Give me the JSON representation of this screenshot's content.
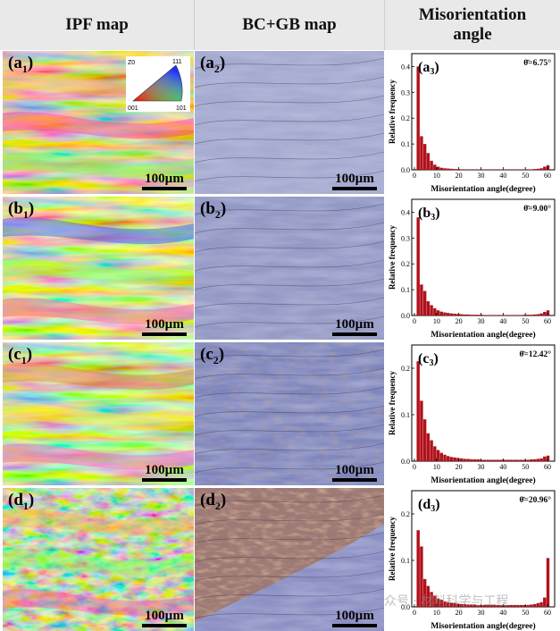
{
  "headers": {
    "ipf": "IPF map",
    "bcgb": "BC+GB map",
    "mis_line1": "Misorientation",
    "mis_line2": "angle"
  },
  "ipf_legend": {
    "top_left": "Z0",
    "top_right": "111",
    "bottom_left": "001",
    "bottom_right": "101"
  },
  "scale_bar": "100µm",
  "rows": [
    {
      "ipf_label": "a",
      "bc_label": "a",
      "chart_label": "a",
      "mean": "6.75°"
    },
    {
      "ipf_label": "b",
      "bc_label": "b",
      "chart_label": "b",
      "mean": "9.00°"
    },
    {
      "ipf_label": "c",
      "bc_label": "c",
      "chart_label": "c",
      "mean": "12.42°"
    },
    {
      "ipf_label": "d",
      "bc_label": "d",
      "chart_label": "d",
      "mean": "20.96°"
    }
  ],
  "subscripts": {
    "ipf": "1",
    "bc": "2",
    "chart": "3"
  },
  "theta_symbol": "θ̄=",
  "watermark": "众号 · 材料科学与工程",
  "chart_data": [
    {
      "type": "bar",
      "xlabel": "Misorientation angle(degree)",
      "ylabel": "Relative frequency",
      "xlim": [
        0,
        62
      ],
      "ylim": [
        0,
        0.45
      ],
      "xticks": [
        0,
        10,
        20,
        30,
        40,
        50,
        60
      ],
      "yticks": [
        0.0,
        0.1,
        0.2,
        0.3,
        0.4
      ],
      "ytick_labels": [
        "0.0",
        "0.1",
        "0.2",
        "0.3",
        "0.4"
      ],
      "bin_width": 1.5,
      "bin_starts": [
        1,
        2.5,
        4,
        5.5,
        7,
        8.5,
        10,
        11.5,
        13,
        14.5,
        16,
        17.5,
        19,
        20.5,
        22,
        23.5,
        25,
        26.5,
        28,
        29.5,
        31,
        32.5,
        34,
        35.5,
        37,
        38.5,
        40,
        41.5,
        43,
        44.5,
        46,
        47.5,
        49,
        50.5,
        52,
        53.5,
        55,
        56.5,
        58,
        59.5
      ],
      "values": [
        0.4,
        0.13,
        0.1,
        0.065,
        0.035,
        0.02,
        0.012,
        0.008,
        0.006,
        0.005,
        0.004,
        0.003,
        0.003,
        0.002,
        0.002,
        0.002,
        0.002,
        0.001,
        0.001,
        0.001,
        0.001,
        0.001,
        0.001,
        0.001,
        0.001,
        0.001,
        0.001,
        0.001,
        0.001,
        0.001,
        0.001,
        0.001,
        0.001,
        0.002,
        0.002,
        0.003,
        0.004,
        0.006,
        0.012,
        0.018
      ]
    },
    {
      "type": "bar",
      "xlabel": "Misorientation angle(degree)",
      "ylabel": "Relative frequency",
      "xlim": [
        0,
        62
      ],
      "ylim": [
        0,
        0.45
      ],
      "xticks": [
        0,
        10,
        20,
        30,
        40,
        50,
        60
      ],
      "yticks": [
        0.0,
        0.1,
        0.2,
        0.3,
        0.4
      ],
      "ytick_labels": [
        "0.0",
        "0.1",
        "0.2",
        "0.3",
        "0.4"
      ],
      "bin_width": 1.5,
      "bin_starts": [
        1,
        2.5,
        4,
        5.5,
        7,
        8.5,
        10,
        11.5,
        13,
        14.5,
        16,
        17.5,
        19,
        20.5,
        22,
        23.5,
        25,
        26.5,
        28,
        29.5,
        31,
        32.5,
        34,
        35.5,
        37,
        38.5,
        40,
        41.5,
        43,
        44.5,
        46,
        47.5,
        49,
        50.5,
        52,
        53.5,
        55,
        56.5,
        58,
        59.5
      ],
      "values": [
        0.38,
        0.12,
        0.095,
        0.055,
        0.04,
        0.028,
        0.02,
        0.015,
        0.012,
        0.01,
        0.008,
        0.007,
        0.006,
        0.005,
        0.004,
        0.004,
        0.003,
        0.003,
        0.003,
        0.003,
        0.002,
        0.002,
        0.002,
        0.002,
        0.002,
        0.002,
        0.002,
        0.002,
        0.002,
        0.002,
        0.002,
        0.002,
        0.003,
        0.003,
        0.003,
        0.004,
        0.005,
        0.008,
        0.014,
        0.02
      ]
    },
    {
      "type": "bar",
      "xlabel": "Misorientation angle(degree)",
      "ylabel": "Relative frequency",
      "xlim": [
        0,
        62
      ],
      "ylim": [
        0,
        0.25
      ],
      "xticks": [
        0,
        10,
        20,
        30,
        40,
        50,
        60
      ],
      "yticks": [
        0.0,
        0.1,
        0.2
      ],
      "ytick_labels": [
        "0.0",
        "0.1",
        "0.2"
      ],
      "bin_width": 1.5,
      "bin_starts": [
        1,
        2.5,
        4,
        5.5,
        7,
        8.5,
        10,
        11.5,
        13,
        14.5,
        16,
        17.5,
        19,
        20.5,
        22,
        23.5,
        25,
        26.5,
        28,
        29.5,
        31,
        32.5,
        34,
        35.5,
        37,
        38.5,
        40,
        41.5,
        43,
        44.5,
        46,
        47.5,
        49,
        50.5,
        52,
        53.5,
        55,
        56.5,
        58,
        59.5
      ],
      "values": [
        0.215,
        0.13,
        0.09,
        0.06,
        0.045,
        0.032,
        0.024,
        0.018,
        0.014,
        0.011,
        0.009,
        0.008,
        0.007,
        0.006,
        0.005,
        0.005,
        0.004,
        0.004,
        0.004,
        0.003,
        0.003,
        0.003,
        0.003,
        0.003,
        0.003,
        0.003,
        0.003,
        0.003,
        0.003,
        0.003,
        0.003,
        0.003,
        0.003,
        0.003,
        0.004,
        0.004,
        0.005,
        0.006,
        0.01,
        0.012
      ]
    },
    {
      "type": "bar",
      "xlabel": "Misorientation angle(degree)",
      "ylabel": "Relative frequency",
      "xlim": [
        0,
        62
      ],
      "ylim": [
        0,
        0.25
      ],
      "xticks": [
        0,
        10,
        20,
        30,
        40,
        50,
        60
      ],
      "yticks": [
        0.0,
        0.1,
        0.2
      ],
      "ytick_labels": [
        "0.0",
        "0.1",
        "0.2"
      ],
      "bin_width": 1.5,
      "bin_starts": [
        1,
        2.5,
        4,
        5.5,
        7,
        8.5,
        10,
        11.5,
        13,
        14.5,
        16,
        17.5,
        19,
        20.5,
        22,
        23.5,
        25,
        26.5,
        28,
        29.5,
        31,
        32.5,
        34,
        35.5,
        37,
        38.5,
        40,
        41.5,
        43,
        44.5,
        46,
        47.5,
        49,
        50.5,
        52,
        53.5,
        55,
        56.5,
        58,
        59.5
      ],
      "values": [
        0.165,
        0.13,
        0.06,
        0.045,
        0.032,
        0.024,
        0.018,
        0.015,
        0.012,
        0.01,
        0.009,
        0.008,
        0.007,
        0.006,
        0.006,
        0.005,
        0.005,
        0.005,
        0.004,
        0.004,
        0.004,
        0.004,
        0.004,
        0.004,
        0.004,
        0.004,
        0.004,
        0.004,
        0.004,
        0.004,
        0.004,
        0.004,
        0.004,
        0.004,
        0.005,
        0.006,
        0.008,
        0.01,
        0.02,
        0.105
      ]
    }
  ]
}
